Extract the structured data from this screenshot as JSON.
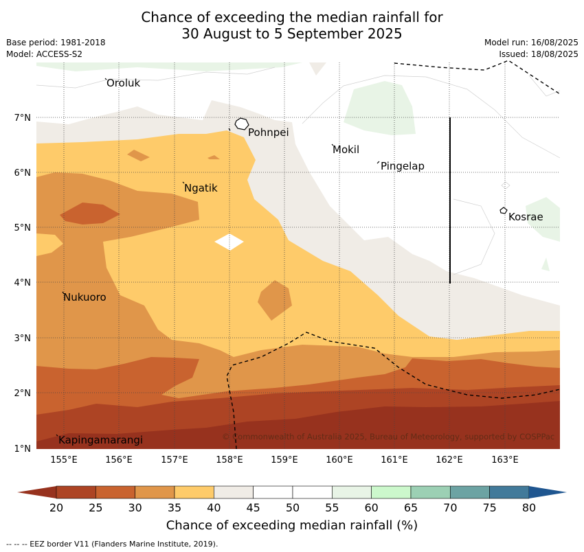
{
  "title_line1": "Chance of exceeding the median rainfall for",
  "title_line2": "30 August to 5 September 2025",
  "base_period": "Base period: 1981-2018",
  "model": "Model: ACCESS-S2",
  "model_run": "Model run: 16/08/2025",
  "issued": "Issued: 18/08/2025",
  "lat_labels": [
    "7°N",
    "6°N",
    "5°N",
    "4°N",
    "3°N",
    "2°N",
    "1°N"
  ],
  "lon_labels": [
    "155°E",
    "156°E",
    "157°E",
    "158°E",
    "159°E",
    "160°E",
    "161°E",
    "162°E",
    "163°E"
  ],
  "places": [
    "Oroluk",
    "Pohnpei",
    "Mokil",
    "Pingelap",
    "Ngatik",
    "Kosrae",
    "Nukuoro",
    "Kapingamarangi"
  ],
  "copyright": "© Commonwealth of Australia 2025, Bureau of Meteorology, supported by COSPPac",
  "colorbar": {
    "title": "Chance of exceeding median rainfall (%)",
    "tick_labels": [
      "20",
      "25",
      "30",
      "35",
      "40",
      "45",
      "50",
      "55",
      "60",
      "65",
      "70",
      "75",
      "80"
    ],
    "colors": [
      "#ad4424",
      "#c9632f",
      "#e0964a",
      "#fecb6a",
      "#f0ece6",
      "#ffffff",
      "#ffffff",
      "#e8f4e6",
      "#ccf8cc",
      "#9cd0b4",
      "#6ca3a3",
      "#427a9a",
      "#1f5690",
      "#97321e"
    ]
  },
  "eez_note": "--  --  -- EEZ border V11 (Flanders Marine Institute, 2019).",
  "legend_colors": {
    "c20_25": "#ad4424",
    "c25_30": "#c9632f",
    "c30_35": "#e0964a",
    "c35_40": "#fecb6a",
    "c40_45": "#f0ece6",
    "c55_60": "#e8f4e6",
    "below_20": "#97321e"
  }
}
